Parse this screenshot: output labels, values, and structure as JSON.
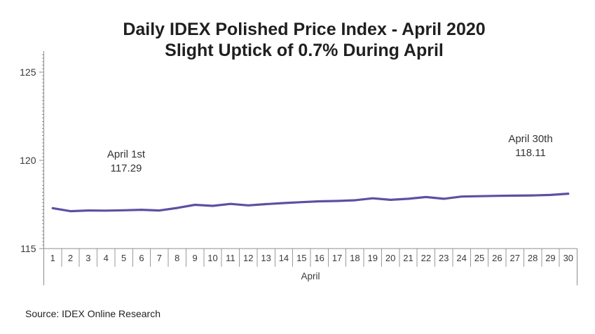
{
  "title": {
    "line1": "Daily IDEX Polished Price Index - April 2020",
    "line2": "Slight Uptick of 0.7% During April"
  },
  "annotations": {
    "start": {
      "label": "April 1st",
      "value": "117.29"
    },
    "end": {
      "label": "April 30th",
      "value": "118.11"
    }
  },
  "source": "Source: IDEX Online Research",
  "colors": {
    "line": "#5b51a3",
    "axis": "#8c8c8c",
    "separator": "#9a9a9a",
    "tick_text": "#3a3a3a"
  },
  "chart_data": {
    "type": "line",
    "title": "Daily IDEX Polished Price Index - April 2020",
    "subtitle": "Slight Uptick of 0.7% During April",
    "series_name": "Daily IDEX Polished Price Index",
    "xlabel": "April",
    "ylabel": "",
    "x": [
      1,
      2,
      3,
      4,
      5,
      6,
      7,
      8,
      9,
      10,
      11,
      12,
      13,
      14,
      15,
      16,
      17,
      18,
      19,
      20,
      21,
      22,
      23,
      24,
      25,
      26,
      27,
      28,
      29,
      30
    ],
    "values": [
      117.29,
      117.12,
      117.16,
      117.15,
      117.17,
      117.2,
      117.16,
      117.3,
      117.48,
      117.42,
      117.53,
      117.45,
      117.52,
      117.58,
      117.63,
      117.68,
      117.7,
      117.74,
      117.85,
      117.76,
      117.82,
      117.92,
      117.82,
      117.95,
      117.97,
      117.99,
      118.0,
      118.01,
      118.04,
      118.11
    ],
    "ylim": [
      115,
      126.2
    ],
    "yticks": [
      115,
      120,
      125
    ],
    "minor_tick_step": 0.2,
    "grid": false,
    "legend": false,
    "start_value": 117.29,
    "end_value": 118.11,
    "change_pct": "0.7%"
  }
}
